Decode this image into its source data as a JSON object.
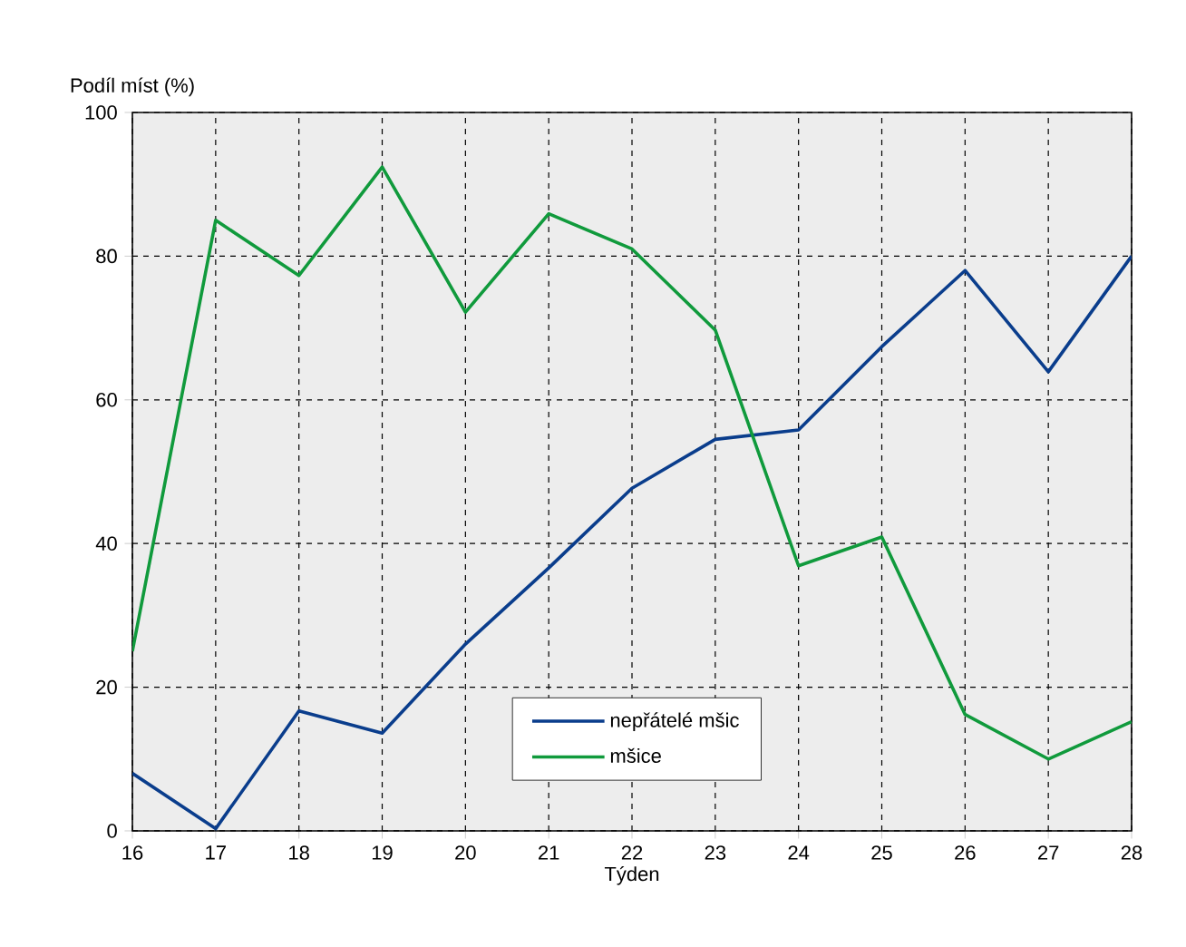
{
  "chart_data": {
    "type": "line",
    "xlabel": "Týden",
    "ylabel": "Podíl míst (%)",
    "x": [
      16,
      17,
      18,
      19,
      20,
      21,
      22,
      23,
      24,
      25,
      26,
      27,
      28
    ],
    "series": [
      {
        "name": "nepřátelé mšic",
        "color": "#0a3d8c",
        "values": [
          8,
          0.3,
          16.7,
          13.6,
          26,
          36.6,
          47.7,
          54.5,
          55.8,
          67.4,
          78,
          63.9,
          80
        ]
      },
      {
        "name": "mšice",
        "color": "#109a3c",
        "values": [
          25,
          85,
          77.3,
          92.4,
          72.2,
          85.9,
          81,
          69.7,
          36.9,
          40.9,
          16.2,
          10,
          15.2
        ]
      }
    ],
    "xlim": [
      16,
      28
    ],
    "xticks": [
      16,
      17,
      18,
      19,
      20,
      21,
      22,
      23,
      24,
      25,
      26,
      27,
      28
    ],
    "ylim": [
      0,
      100
    ],
    "yticks": [
      0,
      20,
      40,
      60,
      80,
      100
    ],
    "grid": true,
    "legend": "bottom",
    "marker": "none",
    "line_style": "solid"
  }
}
